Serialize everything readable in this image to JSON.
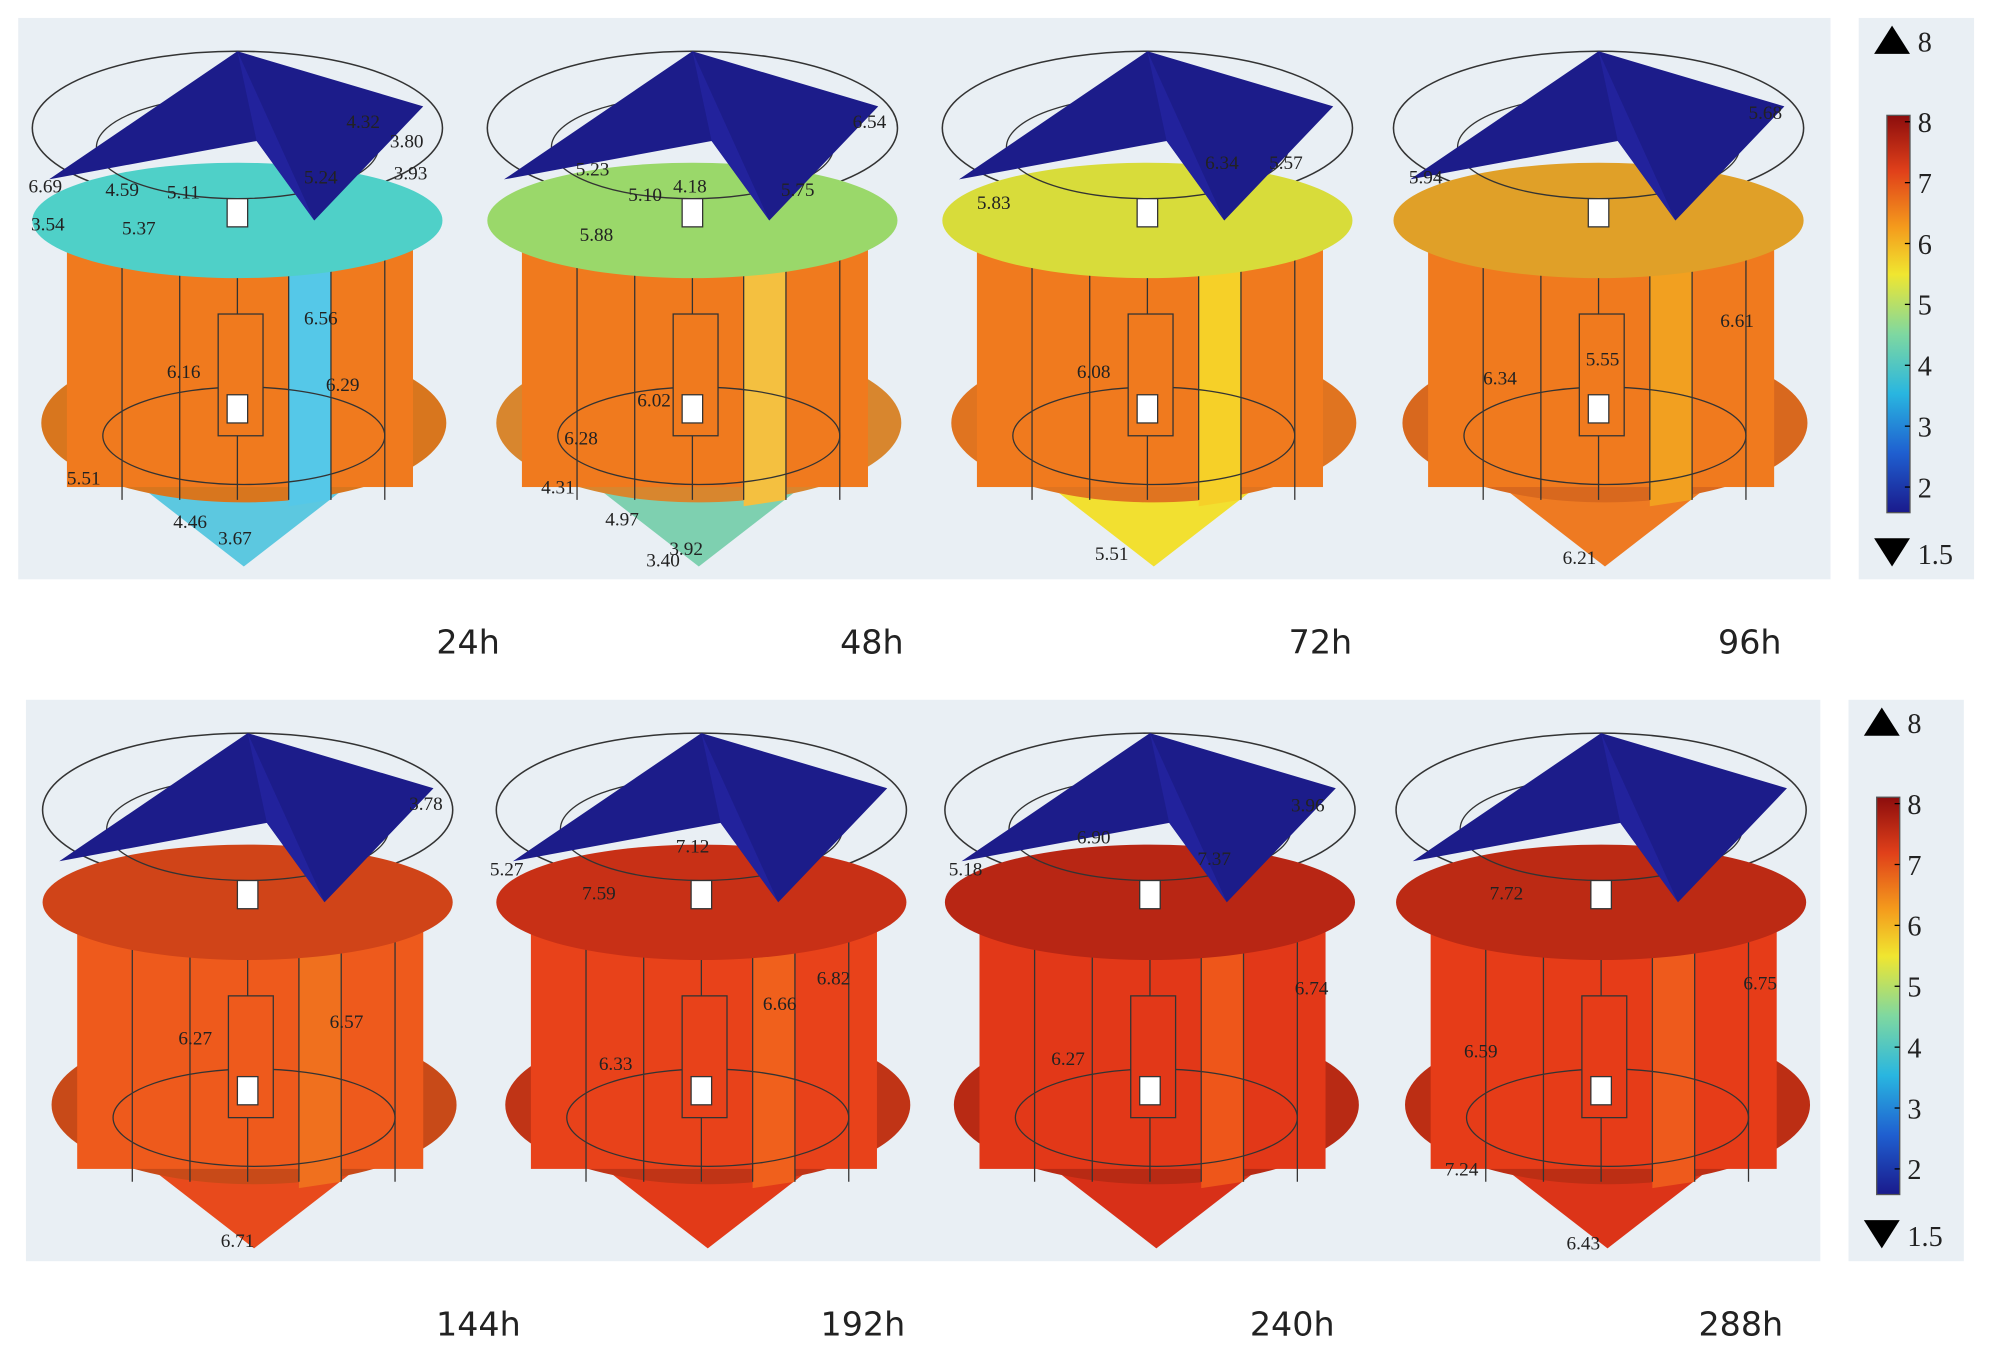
{
  "colorbars": [
    {
      "max": "8",
      "min": "1.5",
      "ticks": [
        "8",
        "7",
        "6",
        "5",
        "4",
        "3",
        "2"
      ]
    },
    {
      "max": "8",
      "min": "1.5",
      "ticks": [
        "8",
        "7",
        "6",
        "5",
        "4",
        "3",
        "2"
      ]
    }
  ],
  "panels": [
    {
      "time": "24h",
      "labels": [
        "4.32",
        "3.80",
        "6.69",
        "4.59",
        "5.11",
        "5.24",
        "3.93",
        "3.54",
        "5.37",
        "6.56",
        "6.16",
        "6.29",
        "5.51",
        "4.46",
        "3.67"
      ]
    },
    {
      "time": "48h",
      "labels": [
        "6.54",
        "5.23",
        "5.10",
        "4.18",
        "5.75",
        "5.88",
        "6.02",
        "6.28",
        "4.31",
        "4.97",
        "3.92",
        "3.40"
      ]
    },
    {
      "time": "72h",
      "labels": [
        "6.34",
        "5.57",
        "5.83",
        "6.08",
        "5.51"
      ]
    },
    {
      "time": "96h",
      "labels": [
        "5.68",
        "5.94",
        "6.61",
        "5.55",
        "6.34",
        "6.21"
      ]
    },
    {
      "time": "144h",
      "labels": [
        "3.78",
        "6.57",
        "6.27",
        "6.71"
      ]
    },
    {
      "time": "192h",
      "labels": [
        "5.27",
        "7.12",
        "7.59",
        "6.82",
        "6.66",
        "6.33"
      ]
    },
    {
      "time": "240h",
      "labels": [
        "5.18",
        "3.96",
        "6.90",
        "7.37",
        "6.74",
        "6.27"
      ]
    },
    {
      "time": "288h",
      "labels": [
        "7.72",
        "6.75",
        "6.59",
        "7.24",
        "6.43"
      ]
    }
  ]
}
